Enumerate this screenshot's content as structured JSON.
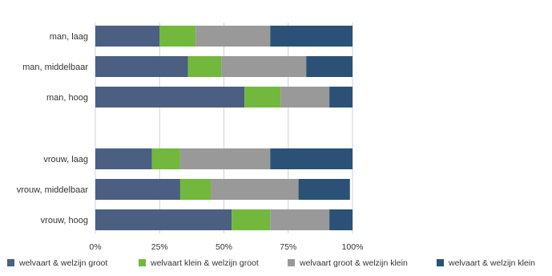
{
  "chart_data": {
    "type": "bar",
    "orientation": "horizontal",
    "stacked": true,
    "percent": true,
    "categories": [
      "man, laag",
      "man, middelbaar",
      "man, hoog",
      "",
      "vrouw, laag",
      "vrouw, middelbaar",
      "vrouw, hoog"
    ],
    "series": [
      {
        "name": "welvaart & welzijn groot",
        "color": "#4a5f82",
        "values": [
          25,
          36,
          58,
          null,
          22,
          33,
          53
        ]
      },
      {
        "name": "welvaart klein & welzijn groot",
        "color": "#72b83c",
        "values": [
          14,
          13,
          14,
          null,
          11,
          12,
          15
        ]
      },
      {
        "name": "welvaart groot & welzijn klein",
        "color": "#999999",
        "values": [
          29,
          33,
          19,
          null,
          35,
          34,
          23
        ]
      },
      {
        "name": "welvaart & welzijn klein",
        "color": "#2b5276",
        "values": [
          32,
          18,
          9,
          null,
          32,
          20,
          9
        ]
      }
    ],
    "xlim": [
      0,
      100
    ],
    "xticks": [
      "0%",
      "25%",
      "50%",
      "75%",
      "100%"
    ],
    "grid": true,
    "legend": "bottom",
    "title": "",
    "xlabel": "",
    "ylabel": ""
  }
}
